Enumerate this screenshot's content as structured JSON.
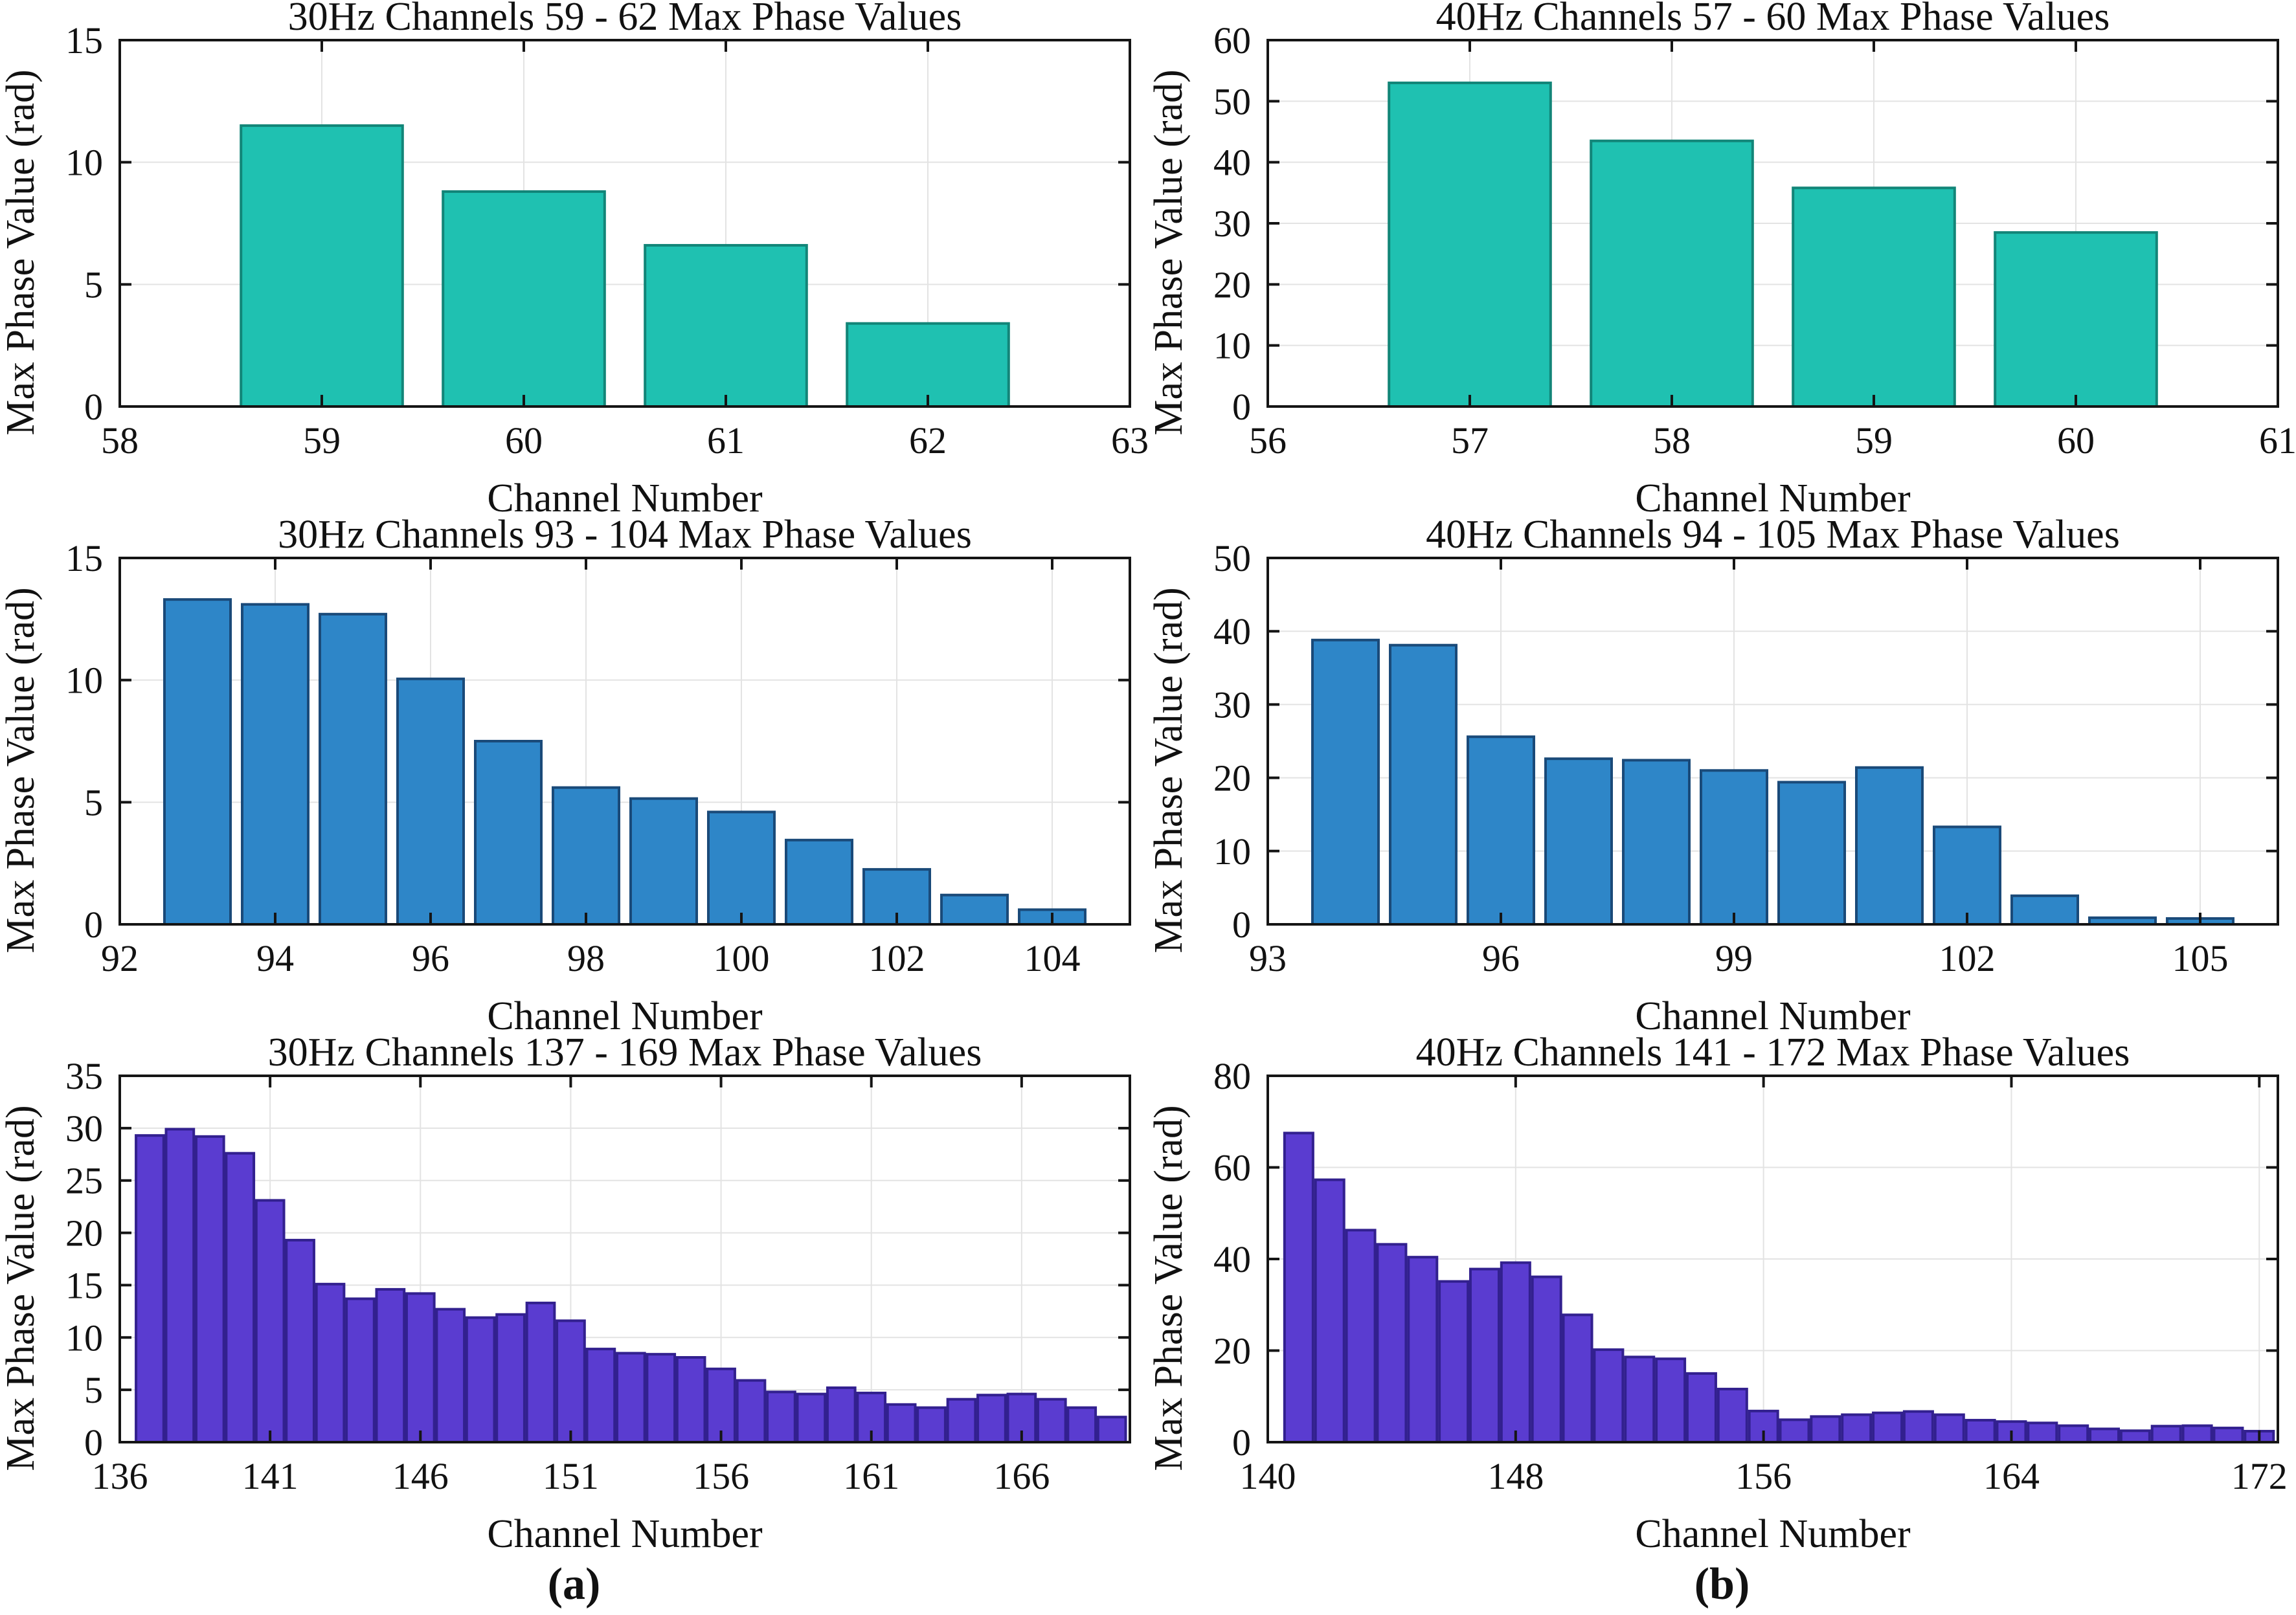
{
  "figure": {
    "caption_left": "(a)",
    "caption_right": "(b)"
  },
  "colors": {
    "axis": "#151515",
    "grid": "#e3e3e3",
    "text": "#111111",
    "teal_fill": "#1fc1b1",
    "teal_edge": "#128578",
    "blue_fill": "#2e86c8",
    "blue_edge": "#1a4a79",
    "purple_fill": "#5a3cd0",
    "purple_edge": "#32208f"
  },
  "chart_data": [
    {
      "type": "bar",
      "title": "30Hz Channels 59 - 62 Max Phase Values",
      "xlabel": "Channel Number",
      "ylabel": "Max Phase Value (rad)",
      "bar_fill": "#1fc1b1",
      "bar_edge": "#128578",
      "xlim": [
        58,
        63
      ],
      "ylim": [
        0,
        15
      ],
      "xticks": [
        58,
        59,
        60,
        61,
        62,
        63
      ],
      "yticks": [
        0,
        5,
        10,
        15
      ],
      "categories": [
        59,
        60,
        61,
        62
      ],
      "values": [
        11.5,
        8.8,
        6.6,
        3.4
      ],
      "bar_width": 0.8,
      "grid": true,
      "legend": "none"
    },
    {
      "type": "bar",
      "title": "40Hz Channels 57 - 60 Max Phase Values",
      "xlabel": "Channel Number",
      "ylabel": "Max Phase Value (rad)",
      "bar_fill": "#1fc1b1",
      "bar_edge": "#128578",
      "xlim": [
        56,
        61
      ],
      "ylim": [
        0,
        60
      ],
      "xticks": [
        56,
        57,
        58,
        59,
        60,
        61
      ],
      "yticks": [
        0,
        10,
        20,
        30,
        40,
        50,
        60
      ],
      "categories": [
        57,
        58,
        59,
        60
      ],
      "values": [
        53.0,
        43.5,
        35.8,
        28.5
      ],
      "bar_width": 0.8,
      "grid": true,
      "legend": "none"
    },
    {
      "type": "bar",
      "title": "30Hz Channels 93 - 104 Max Phase Values",
      "xlabel": "Channel Number",
      "ylabel": "Max Phase Value (rad)",
      "bar_fill": "#2e86c8",
      "bar_edge": "#1a4a79",
      "xlim": [
        92,
        105
      ],
      "ylim": [
        0,
        15
      ],
      "xticks": [
        92,
        94,
        96,
        98,
        100,
        102,
        104
      ],
      "yticks": [
        0,
        5,
        10,
        15
      ],
      "categories": [
        93,
        94,
        95,
        96,
        97,
        98,
        99,
        100,
        101,
        102,
        103,
        104
      ],
      "values": [
        13.3,
        13.1,
        12.7,
        10.05,
        7.5,
        5.6,
        5.15,
        4.6,
        3.45,
        2.25,
        1.2,
        0.6
      ],
      "bar_width": 0.85,
      "grid": true,
      "legend": "none"
    },
    {
      "type": "bar",
      "title": "40Hz Channels 94 - 105 Max Phase Values",
      "xlabel": "Channel Number",
      "ylabel": "Max Phase Value (rad)",
      "bar_fill": "#2e86c8",
      "bar_edge": "#1a4a79",
      "xlim": [
        93,
        106
      ],
      "ylim": [
        0,
        50
      ],
      "xticks": [
        93,
        96,
        99,
        102,
        105
      ],
      "yticks": [
        0,
        10,
        20,
        30,
        40,
        50
      ],
      "categories": [
        94,
        95,
        96,
        97,
        98,
        99,
        100,
        101,
        102,
        103,
        104,
        105
      ],
      "values": [
        38.8,
        38.1,
        25.6,
        22.6,
        22.4,
        21.0,
        19.4,
        21.4,
        13.3,
        3.9,
        0.9,
        0.8
      ],
      "bar_width": 0.85,
      "grid": true,
      "legend": "none"
    },
    {
      "type": "bar",
      "title": "30Hz Channels 137 - 169 Max Phase Values",
      "xlabel": "Channel Number",
      "ylabel": "Max Phase Value (rad)",
      "bar_fill": "#5a3cd0",
      "bar_edge": "#32208f",
      "xlim": [
        136,
        169.6
      ],
      "ylim": [
        0,
        35
      ],
      "xticks": [
        136,
        141,
        146,
        151,
        156,
        161,
        166
      ],
      "yticks": [
        0,
        5,
        10,
        15,
        20,
        25,
        30,
        35
      ],
      "categories": [
        137,
        138,
        139,
        140,
        141,
        142,
        143,
        144,
        145,
        146,
        147,
        148,
        149,
        150,
        151,
        152,
        153,
        154,
        155,
        156,
        157,
        158,
        159,
        160,
        161,
        162,
        163,
        164,
        165,
        166,
        167,
        168,
        169
      ],
      "values": [
        29.3,
        29.9,
        29.2,
        27.6,
        23.1,
        19.3,
        15.1,
        13.7,
        14.6,
        14.2,
        12.7,
        11.9,
        12.2,
        13.3,
        11.6,
        8.9,
        8.5,
        8.4,
        8.1,
        7.0,
        5.9,
        4.8,
        4.6,
        5.2,
        4.7,
        3.6,
        3.3,
        4.1,
        4.5,
        4.6,
        4.1,
        3.3,
        2.4
      ],
      "bar_width": 0.92,
      "grid": true,
      "legend": "none"
    },
    {
      "type": "bar",
      "title": "40Hz Channels 141 - 172 Max Phase Values",
      "xlabel": "Channel Number",
      "ylabel": "Max Phase Value (rad)",
      "bar_fill": "#5a3cd0",
      "bar_edge": "#32208f",
      "xlim": [
        140,
        172.6
      ],
      "ylim": [
        0,
        80
      ],
      "xticks": [
        140,
        148,
        156,
        164,
        172
      ],
      "yticks": [
        0,
        20,
        40,
        60,
        80
      ],
      "categories": [
        141,
        142,
        143,
        144,
        145,
        146,
        147,
        148,
        149,
        150,
        151,
        152,
        153,
        154,
        155,
        156,
        157,
        158,
        159,
        160,
        161,
        162,
        163,
        164,
        165,
        166,
        167,
        168,
        169,
        170,
        171,
        172
      ],
      "values": [
        67.5,
        57.3,
        46.3,
        43.2,
        40.4,
        35.1,
        37.8,
        39.2,
        36.1,
        27.8,
        20.2,
        18.6,
        18.2,
        15.0,
        11.6,
        6.8,
        4.9,
        5.6,
        6.0,
        6.4,
        6.7,
        6.0,
        4.8,
        4.5,
        4.2,
        3.6,
        2.9,
        2.5,
        3.5,
        3.6,
        3.1,
        2.4
      ],
      "bar_width": 0.92,
      "grid": true,
      "legend": "none"
    }
  ]
}
